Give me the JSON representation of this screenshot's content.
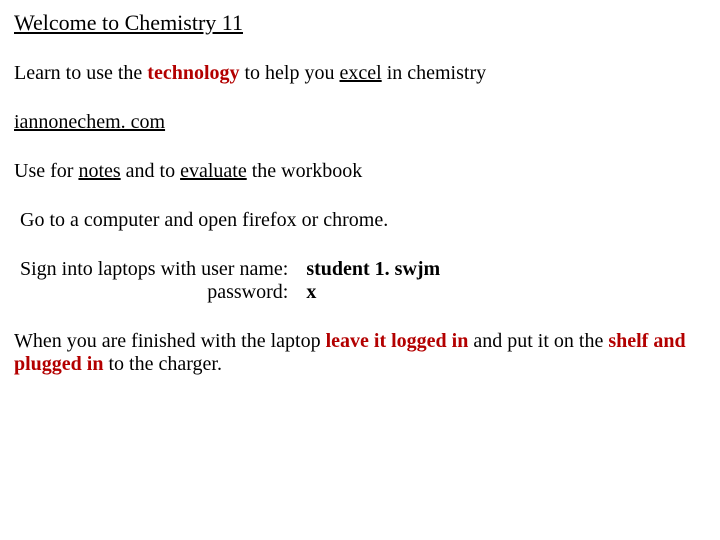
{
  "title": "Welcome to Chemistry 11",
  "intro": {
    "t1": "Learn to use the ",
    "tech": "technology",
    "t2": " to help you ",
    "excel": "excel",
    "t3": " in chemistry"
  },
  "link": "iannonechem. com",
  "use": {
    "u1": "Use for ",
    "notes": "notes",
    "u2": " and to ",
    "eval": "evaluate",
    "u3": " the workbook"
  },
  "firefox": "Go to a computer and open firefox or chrome.",
  "cred": {
    "label1": "Sign into laptops with user name:",
    "val1": "student 1. swjm",
    "label2": "password:",
    "val2": "x"
  },
  "closing": {
    "c1": "When you are finished with the laptop ",
    "b1": "leave it logged in",
    "c2": " and put it on the ",
    "b2": "shelf and plugged in",
    "c3": " to the charger."
  },
  "colors": {
    "accent": "#b30000",
    "text": "#000000",
    "bg": "#ffffff"
  },
  "typography": {
    "font_family": "Times New Roman",
    "title_fontsize": 22,
    "body_fontsize": 20
  }
}
